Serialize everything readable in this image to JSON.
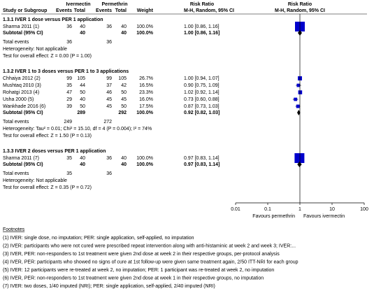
{
  "header": {
    "group1": "Ivermectin",
    "group2": "Permethrin",
    "effect": "Risk Ratio",
    "plot_title": "Risk Ratio",
    "columns": [
      "Study or Subgroup",
      "Events",
      "Total",
      "Events",
      "Total",
      "Weight",
      "M-H, Random, 95% CI",
      "M-H, Random, 95% CI"
    ]
  },
  "subgroups": [
    {
      "title": "1.3.1 IVER 1 dose versus PER 1 application",
      "studies": [
        {
          "name": "Sharma 2011 (1)",
          "e1": 36,
          "n1": 40,
          "e2": 36,
          "n2": 40,
          "weight": {
            "value": 100,
            "label": "100.0%"
          },
          "ci": "1.00 [0.86, 1.16]",
          "rr": 1.0,
          "lo": 0.86,
          "hi": 1.16
        }
      ],
      "subtotal": {
        "label": "Subtotal (95% CI)",
        "n1": 40,
        "n2": 40,
        "weight": {
          "value": 100,
          "label": "100.0%"
        },
        "ci": "1.00 [0.86, 1.16]",
        "rr": 1.0,
        "lo": 0.86,
        "hi": 1.16
      },
      "total_events": {
        "label": "Total events",
        "e1": 36,
        "e2": 36
      },
      "heterogeneity": "Heterogeneity: Not applicable",
      "test": "Test for overall effect: Z = 0.00 (P = 1.00)"
    },
    {
      "title": "1.3.2 IVER 1 to 3 doses versus PER 1 to 3 applications",
      "studies": [
        {
          "name": "Chhaiya 2012 (2)",
          "e1": 99,
          "n1": 105,
          "e2": 99,
          "n2": 105,
          "weight": {
            "value": 26.7,
            "label": "26.7%"
          },
          "ci": "1.00 [0.94, 1.07]",
          "rr": 1.0,
          "lo": 0.94,
          "hi": 1.07
        },
        {
          "name": "Mushtaq 2010 (3)",
          "e1": 35,
          "n1": 44,
          "e2": 37,
          "n2": 42,
          "weight": {
            "value": 16.5,
            "label": "16.5%"
          },
          "ci": "0.90 [0.75, 1.09]",
          "rr": 0.9,
          "lo": 0.75,
          "hi": 1.09
        },
        {
          "name": "Rohatgi 2013 (4)",
          "e1": 47,
          "n1": 50,
          "e2": 46,
          "n2": 50,
          "weight": {
            "value": 23.3,
            "label": "23.3%"
          },
          "ci": "1.02 [0.92, 1.14]",
          "rr": 1.02,
          "lo": 0.92,
          "hi": 1.14
        },
        {
          "name": "Usha 2000 (5)",
          "e1": 29,
          "n1": 40,
          "e2": 45,
          "n2": 45,
          "weight": {
            "value": 16.0,
            "label": "16.0%"
          },
          "ci": "0.73 [0.60, 0.88]",
          "rr": 0.73,
          "lo": 0.6,
          "hi": 0.88
        },
        {
          "name": "Wankhade 2016 (6)",
          "e1": 39,
          "n1": 50,
          "e2": 45,
          "n2": 50,
          "weight": {
            "value": 17.5,
            "label": "17.5%"
          },
          "ci": "0.87 [0.73, 1.03]",
          "rr": 0.87,
          "lo": 0.73,
          "hi": 1.03
        }
      ],
      "subtotal": {
        "label": "Subtotal (95% CI)",
        "n1": 289,
        "n2": 292,
        "weight": {
          "value": 100,
          "label": "100.0%"
        },
        "ci": "0.92 [0.82, 1.03]",
        "rr": 0.92,
        "lo": 0.82,
        "hi": 1.03
      },
      "total_events": {
        "label": "Total events",
        "e1": 249,
        "e2": 272
      },
      "heterogeneity": "Heterogeneity: Tau² = 0.01; Chi² = 15.10, df = 4 (P = 0.004); I² = 74%",
      "test": "Test for overall effect: Z = 1.50 (P = 0.13)"
    },
    {
      "title": "1.3.3 IVER 2 doses versus PER 1 application",
      "studies": [
        {
          "name": "Sharma 2011 (7)",
          "e1": 35,
          "n1": 40,
          "e2": 36,
          "n2": 40,
          "weight": {
            "value": 100,
            "label": "100.0%"
          },
          "ci": "0.97 [0.83, 1.14]",
          "rr": 0.97,
          "lo": 0.83,
          "hi": 1.14
        }
      ],
      "subtotal": {
        "label": "Subtotal (95% CI)",
        "n1": 40,
        "n2": 40,
        "weight": {
          "value": 100,
          "label": "100.0%"
        },
        "ci": "0.97 [0.83, 1.14]",
        "rr": 0.97,
        "lo": 0.83,
        "hi": 1.14
      },
      "total_events": {
        "label": "Total events",
        "e1": 35,
        "e2": 36
      },
      "heterogeneity": "Heterogeneity: Not applicable",
      "test": "Test for overall effect: Z = 0.35 (P = 0.72)"
    }
  ],
  "axis": {
    "log": true,
    "lim": [
      0.01,
      100
    ],
    "ticks": [
      0.01,
      0.1,
      1,
      10,
      100
    ],
    "left_label": "Favours permethrin",
    "right_label": "Favours ivermectin",
    "color": "#0000cc"
  },
  "footnotes": {
    "title": "Footnotes",
    "items": [
      "(1) IVER: single dose, no imputation; PER: single application, self-applied, no imputation",
      "(2) IVER: participants who were not cured were prescribed repeat intervention along with anti-histaminic at week 2 and week 3; IVER:...",
      "(3) IVER, PER: non-responders to 1st treatment were given 2nd dose at week 2 in their respective groups, per-protocol analysis",
      "(4) IVER, PER: participants who showed no signs of cure at 1st follow-up were given same treatment again, 2/50 ITT-NRI for each group",
      "(5) IVER: 12 participants were re-treated at week 2, no imputation; PER: 1 participant was re-treated at week 2, no imputation",
      "(6) IVER, PER: non-responders to 1st treatment were given 2nd dose at week 1 in their respective groups, no imputation",
      "(7) IVER: two doses, 1/40 imputed (NRI); PER: single application, self-applied, 2/40 imputed (NRI)"
    ]
  }
}
